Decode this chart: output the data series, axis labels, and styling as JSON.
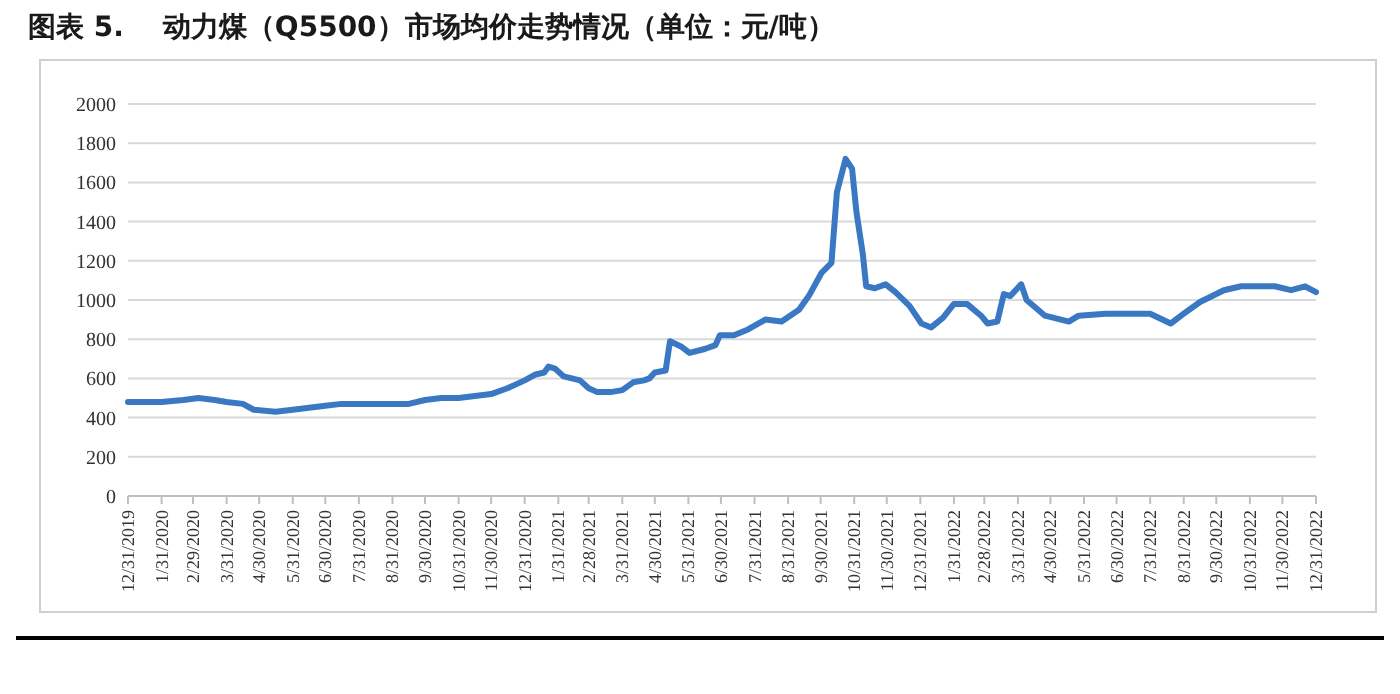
{
  "chart_data": {
    "type": "line",
    "title": "图表 5.    动力煤（Q5500）市场均价走势情况（单位：元/吨）",
    "xlim": [
      "2019-12-31",
      "2022-12-31"
    ],
    "xticks": [
      {
        "value": "2019-12-31",
        "label": "12/31/2019"
      },
      {
        "value": "2020-01-31",
        "label": "1/31/2020"
      },
      {
        "value": "2020-02-29",
        "label": "2/29/2020"
      },
      {
        "value": "2020-03-31",
        "label": "3/31/2020"
      },
      {
        "value": "2020-04-30",
        "label": "4/30/2020"
      },
      {
        "value": "2020-05-31",
        "label": "5/31/2020"
      },
      {
        "value": "2020-06-30",
        "label": "6/30/2020"
      },
      {
        "value": "2020-07-31",
        "label": "7/31/2020"
      },
      {
        "value": "2020-08-31",
        "label": "8/31/2020"
      },
      {
        "value": "2020-09-30",
        "label": "9/30/2020"
      },
      {
        "value": "2020-10-31",
        "label": "10/31/2020"
      },
      {
        "value": "2020-11-30",
        "label": "11/30/2020"
      },
      {
        "value": "2020-12-31",
        "label": "12/31/2020"
      },
      {
        "value": "2021-01-31",
        "label": "1/31/2021"
      },
      {
        "value": "2021-02-28",
        "label": "2/28/2021"
      },
      {
        "value": "2021-03-31",
        "label": "3/31/2021"
      },
      {
        "value": "2021-04-30",
        "label": "4/30/2021"
      },
      {
        "value": "2021-05-31",
        "label": "5/31/2021"
      },
      {
        "value": "2021-06-30",
        "label": "6/30/2021"
      },
      {
        "value": "2021-07-31",
        "label": "7/31/2021"
      },
      {
        "value": "2021-08-31",
        "label": "8/31/2021"
      },
      {
        "value": "2021-09-30",
        "label": "9/30/2021"
      },
      {
        "value": "2021-10-31",
        "label": "10/31/2021"
      },
      {
        "value": "2021-11-30",
        "label": "11/30/2021"
      },
      {
        "value": "2021-12-31",
        "label": "12/31/2021"
      },
      {
        "value": "2022-01-31",
        "label": "1/31/2022"
      },
      {
        "value": "2022-02-28",
        "label": "2/28/2022"
      },
      {
        "value": "2022-03-31",
        "label": "3/31/2022"
      },
      {
        "value": "2022-04-30",
        "label": "4/30/2022"
      },
      {
        "value": "2022-05-31",
        "label": "5/31/2022"
      },
      {
        "value": "2022-06-30",
        "label": "6/30/2022"
      },
      {
        "value": "2022-07-31",
        "label": "7/31/2022"
      },
      {
        "value": "2022-08-31",
        "label": "8/31/2022"
      },
      {
        "value": "2022-09-30",
        "label": "9/30/2022"
      },
      {
        "value": "2022-10-31",
        "label": "10/31/2022"
      },
      {
        "value": "2022-11-30",
        "label": "11/30/2022"
      },
      {
        "value": "2022-12-31",
        "label": "12/31/2022"
      }
    ],
    "ylim": [
      0,
      2000
    ],
    "yticks": [
      0,
      200,
      400,
      600,
      800,
      1000,
      1200,
      1400,
      1600,
      1800,
      2000
    ],
    "grid": "y",
    "series": [
      {
        "color": "#3a78c3",
        "x": [
          "2019-12-31",
          "2020-01-31",
          "2020-02-20",
          "2020-03-05",
          "2020-03-20",
          "2020-03-31",
          "2020-04-15",
          "2020-04-25",
          "2020-05-15",
          "2020-05-31",
          "2020-06-15",
          "2020-06-30",
          "2020-07-15",
          "2020-07-31",
          "2020-08-15",
          "2020-08-31",
          "2020-09-15",
          "2020-09-30",
          "2020-10-15",
          "2020-10-31",
          "2020-11-15",
          "2020-11-30",
          "2020-12-15",
          "2020-12-31",
          "2021-01-10",
          "2021-01-18",
          "2021-01-22",
          "2021-01-28",
          "2021-02-05",
          "2021-02-20",
          "2021-02-28",
          "2021-03-08",
          "2021-03-20",
          "2021-03-31",
          "2021-04-10",
          "2021-04-20",
          "2021-04-25",
          "2021-04-30",
          "2021-05-10",
          "2021-05-14",
          "2021-05-25",
          "2021-06-01",
          "2021-06-15",
          "2021-06-25",
          "2021-06-29",
          "2021-07-12",
          "2021-07-25",
          "2021-08-10",
          "2021-08-25",
          "2021-09-10",
          "2021-09-19",
          "2021-10-01",
          "2021-10-10",
          "2021-10-15",
          "2021-10-23",
          "2021-10-29",
          "2021-11-02",
          "2021-11-08",
          "2021-11-11",
          "2021-11-19",
          "2021-11-29",
          "2021-12-08",
          "2021-12-21",
          "2022-01-01",
          "2022-01-10",
          "2022-01-21",
          "2022-01-31",
          "2022-02-12",
          "2022-02-25",
          "2022-03-03",
          "2022-03-12",
          "2022-03-18",
          "2022-03-24",
          "2022-04-03",
          "2022-04-08",
          "2022-04-25",
          "2022-05-17",
          "2022-05-26",
          "2022-06-20",
          "2022-07-03",
          "2022-07-31",
          "2022-08-19",
          "2022-08-31",
          "2022-09-15",
          "2022-10-07",
          "2022-10-23",
          "2022-11-23",
          "2022-12-08",
          "2022-12-21",
          "2022-12-31"
        ],
        "values": [
          480,
          480,
          490,
          500,
          490,
          480,
          470,
          440,
          430,
          440,
          450,
          460,
          470,
          470,
          470,
          470,
          470,
          490,
          500,
          500,
          510,
          520,
          550,
          590,
          620,
          630,
          660,
          650,
          610,
          590,
          550,
          530,
          530,
          540,
          580,
          590,
          600,
          630,
          640,
          790,
          760,
          730,
          750,
          770,
          820,
          820,
          850,
          900,
          890,
          950,
          1020,
          1140,
          1190,
          1550,
          1720,
          1670,
          1450,
          1230,
          1070,
          1060,
          1080,
          1040,
          970,
          880,
          860,
          910,
          980,
          980,
          920,
          880,
          890,
          1030,
          1020,
          1080,
          1000,
          920,
          890,
          920,
          930,
          930,
          930,
          880,
          930,
          990,
          1050,
          1070,
          1070,
          1050,
          1070,
          1040
        ]
      }
    ]
  }
}
